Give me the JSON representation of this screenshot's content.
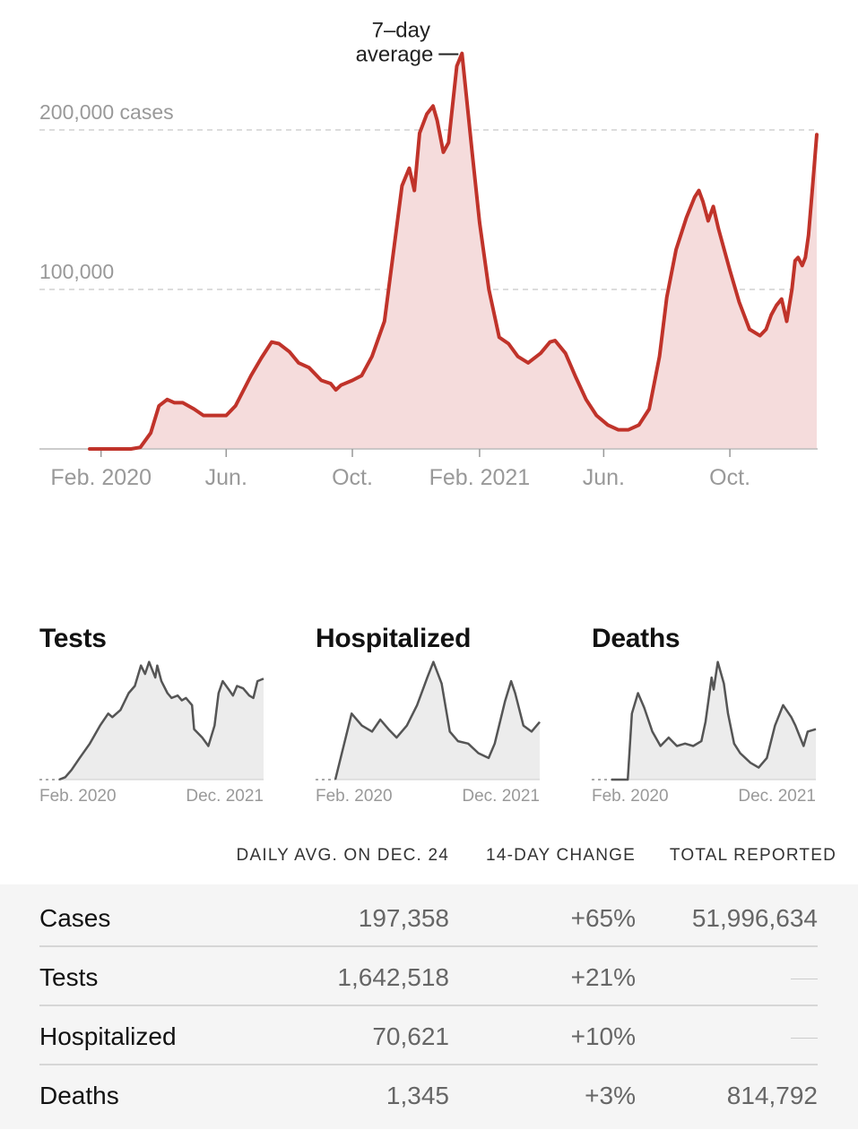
{
  "chart_data": [
    {
      "type": "area",
      "title": "",
      "annotation": "7–day average",
      "y_tick_labels": [
        "200,000 cases",
        "100,000"
      ],
      "y_ticks": [
        200000,
        100000
      ],
      "ylim": [
        0,
        250000
      ],
      "x_tick_labels": [
        "Feb. 2020",
        "Jun.",
        "Oct.",
        "Feb. 2021",
        "Jun.",
        "Oct."
      ],
      "x_tick_dates": [
        "2020-02-01",
        "2020-06-01",
        "2020-10-01",
        "2021-02-01",
        "2021-06-01",
        "2021-10-01"
      ],
      "xlim": [
        "2020-01-21",
        "2021-12-24"
      ],
      "grid": true,
      "series": [
        {
          "color": "#c0332a",
          "fill": "#f5dcdc",
          "x": [
            "2020-01-21",
            "2020-02-15",
            "2020-03-01",
            "2020-03-10",
            "2020-03-20",
            "2020-03-28",
            "2020-04-05",
            "2020-04-12",
            "2020-04-20",
            "2020-05-01",
            "2020-05-10",
            "2020-05-20",
            "2020-06-01",
            "2020-06-10",
            "2020-06-25",
            "2020-07-05",
            "2020-07-15",
            "2020-07-22",
            "2020-08-01",
            "2020-08-10",
            "2020-08-20",
            "2020-09-01",
            "2020-09-10",
            "2020-09-15",
            "2020-09-20",
            "2020-10-01",
            "2020-10-10",
            "2020-10-20",
            "2020-11-01",
            "2020-11-10",
            "2020-11-18",
            "2020-11-25",
            "2020-11-30",
            "2020-12-05",
            "2020-12-12",
            "2020-12-18",
            "2020-12-22",
            "2020-12-28",
            "2021-01-02",
            "2021-01-06",
            "2021-01-10",
            "2021-01-15",
            "2021-01-25",
            "2021-02-01",
            "2021-02-10",
            "2021-02-20",
            "2021-03-01",
            "2021-03-10",
            "2021-03-20",
            "2021-04-01",
            "2021-04-10",
            "2021-04-15",
            "2021-04-25",
            "2021-05-05",
            "2021-05-15",
            "2021-05-25",
            "2021-06-05",
            "2021-06-15",
            "2021-06-25",
            "2021-07-05",
            "2021-07-15",
            "2021-07-25",
            "2021-08-01",
            "2021-08-10",
            "2021-08-20",
            "2021-08-28",
            "2021-09-01",
            "2021-09-05",
            "2021-09-10",
            "2021-09-15",
            "2021-09-20",
            "2021-10-01",
            "2021-10-10",
            "2021-10-20",
            "2021-10-30",
            "2021-11-05",
            "2021-11-10",
            "2021-11-15",
            "2021-11-20",
            "2021-11-25",
            "2021-11-30",
            "2021-12-03",
            "2021-12-06",
            "2021-12-10",
            "2021-12-13",
            "2021-12-16",
            "2021-12-20",
            "2021-12-24"
          ],
          "y": [
            0,
            0,
            0,
            1000,
            10000,
            27000,
            31000,
            29000,
            29000,
            25000,
            21000,
            21000,
            21000,
            27000,
            46000,
            57000,
            67000,
            66000,
            61000,
            54000,
            51000,
            43000,
            41000,
            37000,
            40000,
            43000,
            46000,
            58000,
            80000,
            125000,
            165000,
            176000,
            162000,
            198000,
            210000,
            215000,
            206000,
            186000,
            192000,
            216000,
            240000,
            248000,
            185000,
            142000,
            100000,
            70000,
            66000,
            58000,
            54000,
            60000,
            67000,
            68000,
            60000,
            45000,
            31000,
            21000,
            15000,
            12000,
            12000,
            15000,
            25000,
            58000,
            95000,
            125000,
            145000,
            158000,
            162000,
            155000,
            143000,
            152000,
            138000,
            112000,
            92000,
            75000,
            71000,
            75000,
            84000,
            90000,
            94000,
            80000,
            100000,
            118000,
            120000,
            115000,
            120000,
            134000,
            165000,
            197000
          ]
        }
      ]
    },
    {
      "type": "area",
      "title": "Tests",
      "x_tick_labels": [
        "Feb. 2020",
        "Dec. 2021"
      ],
      "series": [
        {
          "color": "#555555",
          "fill": "#ececec",
          "x": [
            0,
            0.03,
            0.06,
            0.1,
            0.15,
            0.2,
            0.24,
            0.26,
            0.3,
            0.34,
            0.37,
            0.4,
            0.42,
            0.44,
            0.47,
            0.48,
            0.5,
            0.53,
            0.55,
            0.58,
            0.6,
            0.62,
            0.65,
            0.66,
            0.7,
            0.73,
            0.76,
            0.78,
            0.8,
            0.83,
            0.85,
            0.87,
            0.9,
            0.93,
            0.95,
            0.97,
            1.0
          ],
          "y": [
            0,
            0.02,
            0.08,
            0.18,
            0.3,
            0.45,
            0.55,
            0.52,
            0.58,
            0.72,
            0.78,
            0.95,
            0.88,
            0.98,
            0.85,
            0.95,
            0.82,
            0.72,
            0.68,
            0.7,
            0.66,
            0.68,
            0.62,
            0.42,
            0.35,
            0.28,
            0.45,
            0.72,
            0.82,
            0.75,
            0.7,
            0.78,
            0.76,
            0.7,
            0.68,
            0.82,
            0.84
          ]
        }
      ]
    },
    {
      "type": "area",
      "title": "Hospitalized",
      "x_tick_labels": [
        "Feb. 2020",
        "Dec. 2021"
      ],
      "series": [
        {
          "color": "#555555",
          "fill": "#ececec",
          "x": [
            0,
            0.08,
            0.13,
            0.18,
            0.22,
            0.26,
            0.3,
            0.35,
            0.4,
            0.45,
            0.48,
            0.52,
            0.56,
            0.6,
            0.65,
            0.7,
            0.75,
            0.78,
            0.83,
            0.86,
            0.88,
            0.92,
            0.96,
            1.0
          ],
          "y": [
            0,
            0.55,
            0.45,
            0.4,
            0.5,
            0.42,
            0.35,
            0.45,
            0.62,
            0.85,
            0.98,
            0.8,
            0.4,
            0.32,
            0.3,
            0.22,
            0.18,
            0.3,
            0.65,
            0.82,
            0.72,
            0.45,
            0.4,
            0.48
          ]
        }
      ]
    },
    {
      "type": "area",
      "title": "Deaths",
      "x_tick_labels": [
        "Feb. 2020",
        "Dec. 2021"
      ],
      "series": [
        {
          "color": "#555555",
          "fill": "#ececec",
          "x": [
            0,
            0.08,
            0.1,
            0.13,
            0.16,
            0.2,
            0.24,
            0.28,
            0.32,
            0.36,
            0.4,
            0.44,
            0.46,
            0.49,
            0.5,
            0.52,
            0.55,
            0.57,
            0.6,
            0.63,
            0.68,
            0.72,
            0.76,
            0.8,
            0.84,
            0.88,
            0.9,
            0.94,
            0.96,
            1.0
          ],
          "y": [
            0,
            0,
            0.55,
            0.72,
            0.6,
            0.4,
            0.28,
            0.35,
            0.28,
            0.3,
            0.28,
            0.32,
            0.48,
            0.85,
            0.75,
            0.98,
            0.8,
            0.55,
            0.3,
            0.22,
            0.14,
            0.1,
            0.18,
            0.45,
            0.62,
            0.52,
            0.45,
            0.28,
            0.4,
            0.42
          ]
        }
      ]
    },
    {
      "type": "table",
      "columns": [
        "",
        "DAILY AVG. ON DEC. 24",
        "14-DAY CHANGE",
        "TOTAL REPORTED"
      ],
      "rows": [
        [
          "Cases",
          "197,358",
          "+65%",
          "51,996,634"
        ],
        [
          "Tests",
          "1,642,518",
          "+21%",
          ""
        ],
        [
          "Hospitalized",
          "70,621",
          "+10%",
          ""
        ],
        [
          "Deaths",
          "1,345",
          "+3%",
          "814,792"
        ]
      ]
    }
  ]
}
